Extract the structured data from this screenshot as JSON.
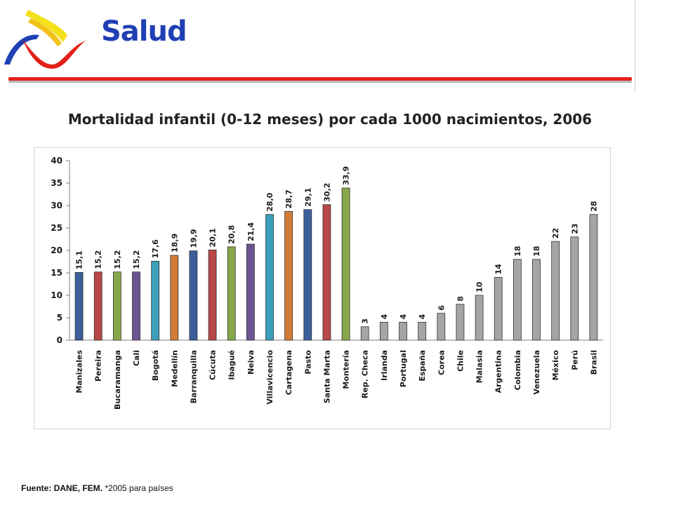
{
  "header": {
    "title": "Salud"
  },
  "chart_data": {
    "type": "bar",
    "title": "Mortalidad infantil (0-12 meses) por cada 1000 nacimientos, 2006",
    "xlabel": "",
    "ylabel": "",
    "ylim": [
      0,
      40
    ],
    "yticks": [
      0,
      5,
      10,
      15,
      20,
      25,
      30,
      35,
      40
    ],
    "grid": false,
    "categories": [
      "Manizales",
      "Pereira",
      "Bucaramanga",
      "Cali",
      "Bogotá",
      "Medellín",
      "Barranquilla",
      "Cúcuta",
      "Ibagué",
      "Neiva",
      "Villavicencio",
      "Cartagena",
      "Pasto",
      "Santa Marta",
      "Montería",
      "Rep. Checa",
      "Irlanda",
      "Portugal",
      "España",
      "Corea",
      "Chile",
      "Malasia",
      "Argentina",
      "Colombia",
      "Venezuela",
      "México",
      "Perú",
      "Brasil"
    ],
    "values": [
      15.1,
      15.2,
      15.2,
      15.2,
      17.6,
      18.9,
      19.9,
      20.1,
      20.8,
      21.4,
      28.0,
      28.7,
      29.1,
      30.2,
      33.9,
      3,
      4,
      4,
      4,
      6,
      8,
      10,
      14,
      18,
      18,
      22,
      23,
      28
    ],
    "value_labels": [
      "15,1",
      "15,2",
      "15,2",
      "15,2",
      "17,6",
      "18,9",
      "19,9",
      "20,1",
      "20,8",
      "21,4",
      "28,0",
      "28,7",
      "29,1",
      "30,2",
      "33,9",
      "3",
      "4",
      "4",
      "4",
      "6",
      "8",
      "10",
      "14",
      "18",
      "18",
      "22",
      "23",
      "28"
    ],
    "colors": [
      "#3b5f9b",
      "#b84747",
      "#86a84a",
      "#6c5590",
      "#3a9fba",
      "#d07c38",
      "#3b5f9b",
      "#b84747",
      "#86a84a",
      "#6c5590",
      "#3a9fba",
      "#d07c38",
      "#3b5f9b",
      "#b84747",
      "#86a84a",
      "#a5a5a5",
      "#a5a5a5",
      "#a5a5a5",
      "#a5a5a5",
      "#a5a5a5",
      "#a5a5a5",
      "#a5a5a5",
      "#a5a5a5",
      "#a5a5a5",
      "#a5a5a5",
      "#a5a5a5",
      "#a5a5a5",
      "#a5a5a5"
    ]
  },
  "footer": {
    "source_bold": "Fuente: DANE, FEM.",
    "source_note": " *2005 para países"
  }
}
